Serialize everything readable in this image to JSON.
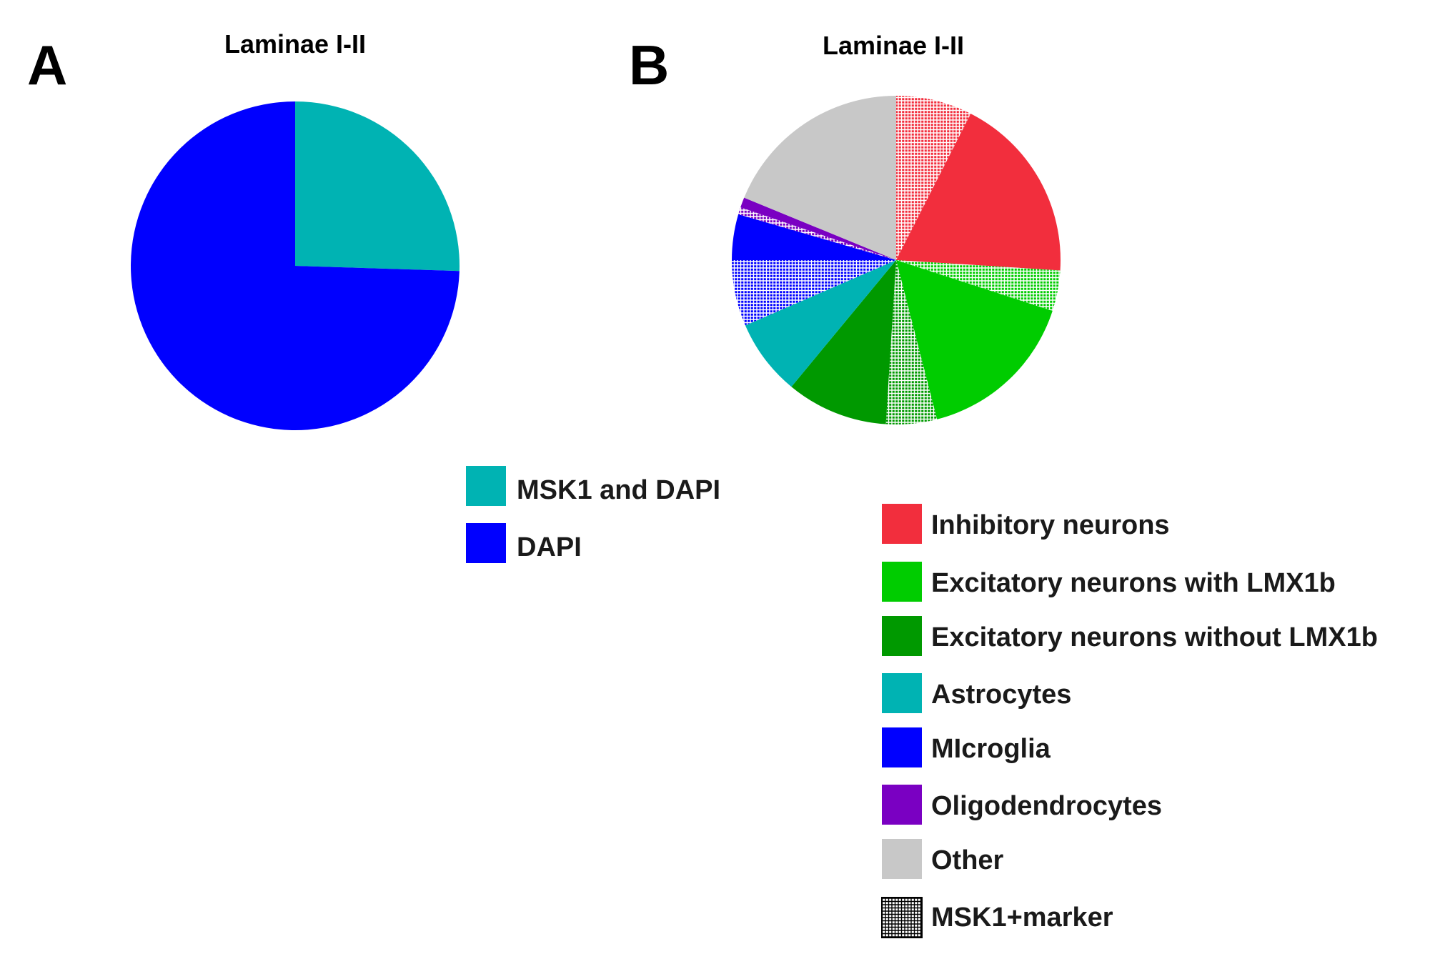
{
  "chart_data": [
    {
      "panel": "A",
      "type": "pie",
      "title": "Laminae I-II",
      "start": "12 o'clock",
      "direction": "clockwise",
      "units": "percent",
      "slices": [
        {
          "label": "MSK1 and DAPI",
          "value": 25.5,
          "color": "#00B3B3",
          "pattern": false
        },
        {
          "label": "DAPI",
          "value": 74.5,
          "color": "#0000FF",
          "pattern": false
        }
      ],
      "legend": [
        {
          "label": "MSK1 and DAPI",
          "color": "#00B3B3",
          "pattern": false
        },
        {
          "label": "DAPI",
          "color": "#0000FF",
          "pattern": false
        }
      ]
    },
    {
      "panel": "B",
      "type": "pie",
      "title": "Laminae I-II",
      "start": "12 o'clock",
      "direction": "clockwise",
      "units": "percent",
      "slices": [
        {
          "label": "Inhibitory neurons + MSK1",
          "value": 7.5,
          "color": "#F22E3D",
          "pattern": true
        },
        {
          "label": "Inhibitory neurons",
          "value": 18.5,
          "color": "#F22E3D",
          "pattern": false
        },
        {
          "label": "Excitatory neurons with LMX1b + MSK1",
          "value": 4.0,
          "color": "#00CC00",
          "pattern": true
        },
        {
          "label": "Excitatory neurons with LMX1b",
          "value": 16.0,
          "color": "#00CC00",
          "pattern": false
        },
        {
          "label": "Excitatory neurons without LMX1b + MSK1",
          "value": 5.0,
          "color": "#009900",
          "pattern": true
        },
        {
          "label": "Excitatory neurons without LMX1b",
          "value": 10.0,
          "color": "#009900",
          "pattern": false
        },
        {
          "label": "Astrocytes",
          "value": 7.5,
          "color": "#00B3B3",
          "pattern": false
        },
        {
          "label": "Microglia + MSK1",
          "value": 6.5,
          "color": "#0000FF",
          "pattern": true
        },
        {
          "label": "Microglia",
          "value": 4.5,
          "color": "#0000FF",
          "pattern": false
        },
        {
          "label": "Oligodendrocytes + MSK1",
          "value": 0.7,
          "color": "#7A00C2",
          "pattern": true
        },
        {
          "label": "Oligodendrocytes",
          "value": 1.0,
          "color": "#7A00C2",
          "pattern": false
        },
        {
          "label": "Other",
          "value": 18.8,
          "color": "#C8C8C8",
          "pattern": false
        }
      ],
      "legend": [
        {
          "label": "Inhibitory neurons",
          "color": "#F22E3D",
          "pattern": false
        },
        {
          "label": "Excitatory neurons with LMX1b",
          "color": "#00CC00",
          "pattern": false
        },
        {
          "label": "Excitatory neurons without LMX1b",
          "color": "#009900",
          "pattern": false
        },
        {
          "label": "Astrocytes",
          "color": "#00B3B3",
          "pattern": false
        },
        {
          "label": "MIcroglia",
          "color": "#0000FF",
          "pattern": false
        },
        {
          "label": "Oligodendrocytes",
          "color": "#7A00C2",
          "pattern": false
        },
        {
          "label": "Other",
          "color": "#C8C8C8",
          "pattern": false
        },
        {
          "label": "MSK1+marker",
          "color": "#FFFFFF",
          "pattern": true
        }
      ]
    }
  ],
  "panels": {
    "a": {
      "letter": "A",
      "title": "Laminae I-II"
    },
    "b": {
      "letter": "B",
      "title": "Laminae I-II"
    }
  },
  "legend_a": {
    "msk1_dapi": {
      "label": "MSK1 and DAPI",
      "color": "#00B3B3"
    },
    "dapi": {
      "label": "DAPI",
      "color": "#0000FF"
    }
  },
  "legend_b": {
    "inhibitory": {
      "label": "Inhibitory neurons",
      "color": "#F22E3D"
    },
    "excitatory_with": {
      "label": "Excitatory neurons with LMX1b",
      "color": "#00CC00"
    },
    "excitatory_without": {
      "label": "Excitatory neurons without LMX1b",
      "color": "#009900"
    },
    "astrocytes": {
      "label": "Astrocytes",
      "color": "#00B3B3"
    },
    "microglia": {
      "label": "MIcroglia",
      "color": "#0000FF"
    },
    "oligodendrocytes": {
      "label": "Oligodendrocytes",
      "color": "#7A00C2"
    },
    "other": {
      "label": "Other",
      "color": "#C8C8C8"
    },
    "msk1_marker": {
      "label": "MSK1+marker",
      "color": "#FFFFFF"
    }
  },
  "colors": {
    "background": "#FFFFFF",
    "pattern_ink": "#FFFFFF",
    "legend_pattern_ink": "#000000"
  }
}
